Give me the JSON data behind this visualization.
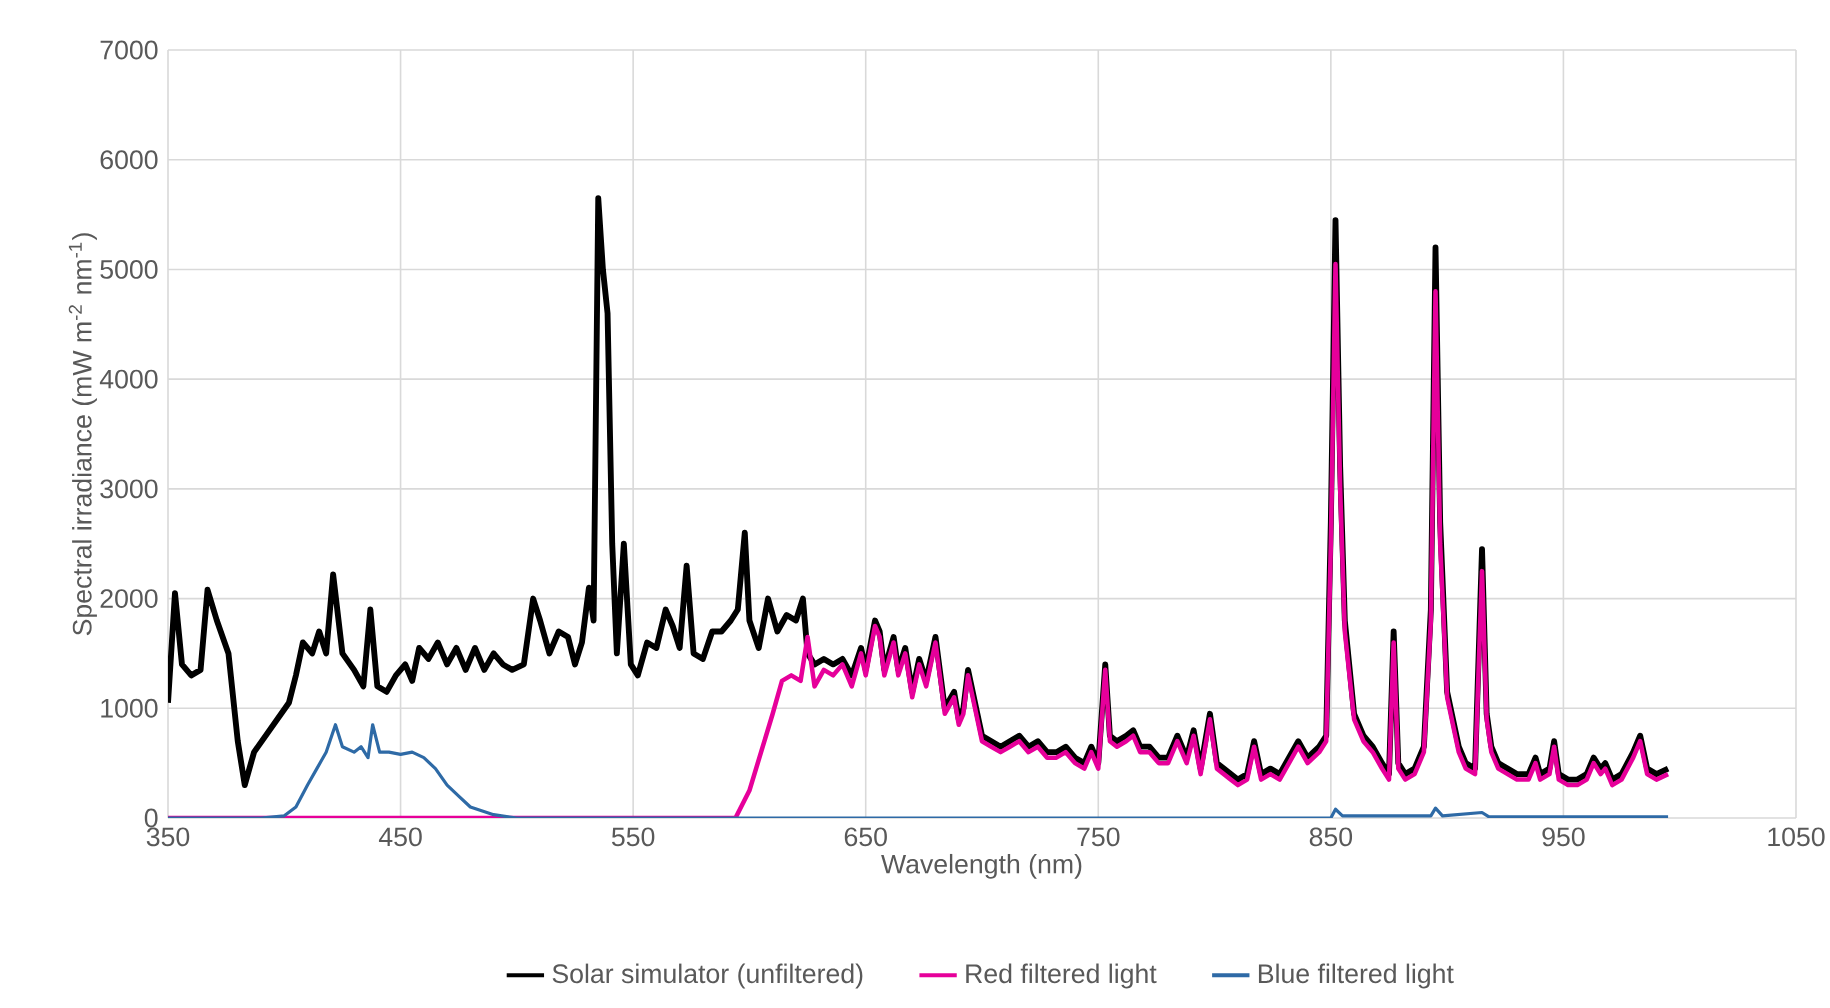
{
  "chart_data": {
    "type": "line",
    "xlabel": "Wavelength (nm)",
    "ylabel": "Spectral irradiance (mW m$^{-2}$ nm$^{-1}$)",
    "xlim": [
      350,
      1050
    ],
    "xticks": [
      350,
      450,
      550,
      650,
      750,
      850,
      950,
      1050
    ],
    "ylim": [
      0,
      7000
    ],
    "yticks": [
      0,
      1000,
      2000,
      3000,
      4000,
      5000,
      6000,
      7000
    ],
    "grid": true,
    "legend": "bottom",
    "series": [
      {
        "name": "Solar simulator (unfiltered)",
        "color": "#000000",
        "x": [
          350,
          353,
          356,
          360,
          364,
          367,
          371,
          376,
          380,
          383,
          387,
          392,
          397,
          402,
          405,
          408,
          412,
          415,
          418,
          421,
          425,
          430,
          434,
          437,
          440,
          444,
          448,
          452,
          455,
          458,
          462,
          466,
          470,
          474,
          478,
          482,
          486,
          490,
          494,
          498,
          503,
          507,
          510,
          514,
          518,
          522,
          525,
          528,
          531,
          533,
          535,
          537,
          539,
          541,
          543,
          546,
          549,
          552,
          556,
          560,
          564,
          567,
          570,
          573,
          576,
          580,
          584,
          588,
          592,
          595,
          598,
          600,
          604,
          608,
          612,
          616,
          620,
          623,
          625,
          628,
          632,
          636,
          640,
          644,
          648,
          650,
          654,
          656,
          658,
          662,
          664,
          667,
          670,
          673,
          676,
          680,
          684,
          688,
          690,
          692,
          694,
          697,
          700,
          704,
          708,
          712,
          716,
          720,
          724,
          728,
          732,
          736,
          740,
          744,
          747,
          750,
          753,
          755,
          758,
          762,
          765,
          768,
          772,
          776,
          780,
          784,
          788,
          791,
          794,
          798,
          801,
          804,
          807,
          810,
          814,
          817,
          820,
          824,
          828,
          832,
          836,
          840,
          845,
          848,
          850,
          852,
          854,
          856,
          860,
          864,
          868,
          872,
          875,
          877,
          879,
          882,
          886,
          890,
          893,
          895,
          897,
          900,
          905,
          908,
          912,
          915,
          917,
          919,
          922,
          926,
          930,
          935,
          938,
          940,
          944,
          946,
          948,
          952,
          956,
          960,
          963,
          966,
          968,
          971,
          975,
          980,
          983,
          986,
          990,
          995
        ],
        "values": [
          1050,
          2050,
          1400,
          1300,
          1350,
          2080,
          1800,
          1500,
          700,
          300,
          600,
          750,
          900,
          1050,
          1300,
          1600,
          1500,
          1700,
          1500,
          2220,
          1500,
          1350,
          1200,
          1900,
          1200,
          1150,
          1300,
          1400,
          1250,
          1550,
          1450,
          1600,
          1400,
          1550,
          1350,
          1550,
          1350,
          1500,
          1400,
          1350,
          1400,
          2000,
          1800,
          1500,
          1700,
          1650,
          1400,
          1600,
          2100,
          1800,
          5650,
          5000,
          4600,
          2500,
          1500,
          2500,
          1400,
          1300,
          1600,
          1550,
          1900,
          1750,
          1550,
          2300,
          1500,
          1450,
          1700,
          1700,
          1800,
          1900,
          2600,
          1800,
          1550,
          2000,
          1700,
          1850,
          1800,
          2000,
          1500,
          1400,
          1450,
          1400,
          1450,
          1300,
          1550,
          1350,
          1800,
          1700,
          1350,
          1650,
          1350,
          1550,
          1150,
          1450,
          1250,
          1650,
          1000,
          1150,
          900,
          1000,
          1350,
          1050,
          750,
          700,
          650,
          700,
          750,
          650,
          700,
          600,
          600,
          650,
          550,
          500,
          650,
          500,
          1400,
          750,
          700,
          750,
          800,
          650,
          650,
          550,
          550,
          750,
          550,
          800,
          450,
          950,
          500,
          450,
          400,
          350,
          400,
          700,
          400,
          450,
          400,
          550,
          700,
          550,
          650,
          750,
          2700,
          5450,
          3200,
          1800,
          950,
          750,
          650,
          500,
          400,
          1700,
          500,
          400,
          450,
          650,
          1900,
          5200,
          2700,
          1150,
          650,
          500,
          450,
          2450,
          950,
          650,
          500,
          450,
          400,
          400,
          550,
          400,
          450,
          700,
          400,
          350,
          350,
          400,
          550,
          450,
          500,
          350,
          400,
          600,
          750,
          450,
          400,
          450
        ]
      },
      {
        "name": "Red filtered light",
        "color": "#e6009a",
        "x": [
          350,
          450,
          550,
          594,
          600,
          605,
          610,
          614,
          618,
          622,
          625,
          628,
          632,
          636,
          640,
          644,
          648,
          650,
          654,
          656,
          658,
          662,
          664,
          667,
          670,
          673,
          676,
          680,
          684,
          688,
          690,
          692,
          694,
          697,
          700,
          704,
          708,
          712,
          716,
          720,
          724,
          728,
          732,
          736,
          740,
          744,
          747,
          750,
          753,
          755,
          758,
          762,
          765,
          768,
          772,
          776,
          780,
          784,
          788,
          791,
          794,
          798,
          801,
          804,
          807,
          810,
          814,
          817,
          820,
          824,
          828,
          832,
          836,
          840,
          845,
          848,
          850,
          852,
          854,
          856,
          860,
          864,
          868,
          872,
          875,
          877,
          879,
          882,
          886,
          890,
          893,
          895,
          897,
          900,
          905,
          908,
          912,
          915,
          917,
          919,
          922,
          926,
          930,
          935,
          938,
          940,
          944,
          946,
          948,
          952,
          956,
          960,
          963,
          966,
          968,
          971,
          975,
          980,
          983,
          986,
          990,
          995
        ],
        "values": [
          0,
          0,
          0,
          0,
          250,
          600,
          950,
          1250,
          1300,
          1250,
          1650,
          1200,
          1350,
          1300,
          1400,
          1200,
          1500,
          1300,
          1750,
          1650,
          1300,
          1600,
          1300,
          1500,
          1100,
          1400,
          1200,
          1600,
          950,
          1100,
          850,
          950,
          1300,
          1000,
          700,
          650,
          600,
          650,
          700,
          600,
          650,
          550,
          550,
          600,
          500,
          450,
          600,
          450,
          1350,
          700,
          650,
          700,
          750,
          600,
          600,
          500,
          500,
          700,
          500,
          750,
          400,
          900,
          450,
          400,
          350,
          300,
          350,
          650,
          350,
          400,
          350,
          500,
          650,
          500,
          600,
          700,
          2500,
          5050,
          3000,
          1700,
          900,
          700,
          600,
          450,
          350,
          1600,
          450,
          350,
          400,
          600,
          1800,
          4800,
          2500,
          1100,
          600,
          450,
          400,
          2250,
          900,
          600,
          450,
          400,
          350,
          350,
          500,
          350,
          400,
          650,
          350,
          300,
          300,
          350,
          500,
          400,
          450,
          300,
          350,
          550,
          700,
          400,
          350,
          400
        ]
      },
      {
        "name": "Blue filtered light",
        "color": "#2e6aa6",
        "x": [
          350,
          390,
          400,
          405,
          410,
          414,
          418,
          422,
          425,
          430,
          433,
          436,
          438,
          441,
          445,
          450,
          455,
          460,
          465,
          470,
          475,
          480,
          490,
          500,
          550,
          650,
          750,
          850,
          852,
          855,
          876,
          893,
          895,
          898,
          915,
          918,
          995
        ],
        "values": [
          0,
          0,
          20,
          100,
          300,
          450,
          600,
          850,
          650,
          600,
          650,
          550,
          850,
          600,
          600,
          580,
          600,
          550,
          450,
          300,
          200,
          100,
          30,
          0,
          0,
          0,
          0,
          0,
          80,
          20,
          20,
          20,
          90,
          20,
          50,
          10,
          10
        ]
      }
    ]
  }
}
